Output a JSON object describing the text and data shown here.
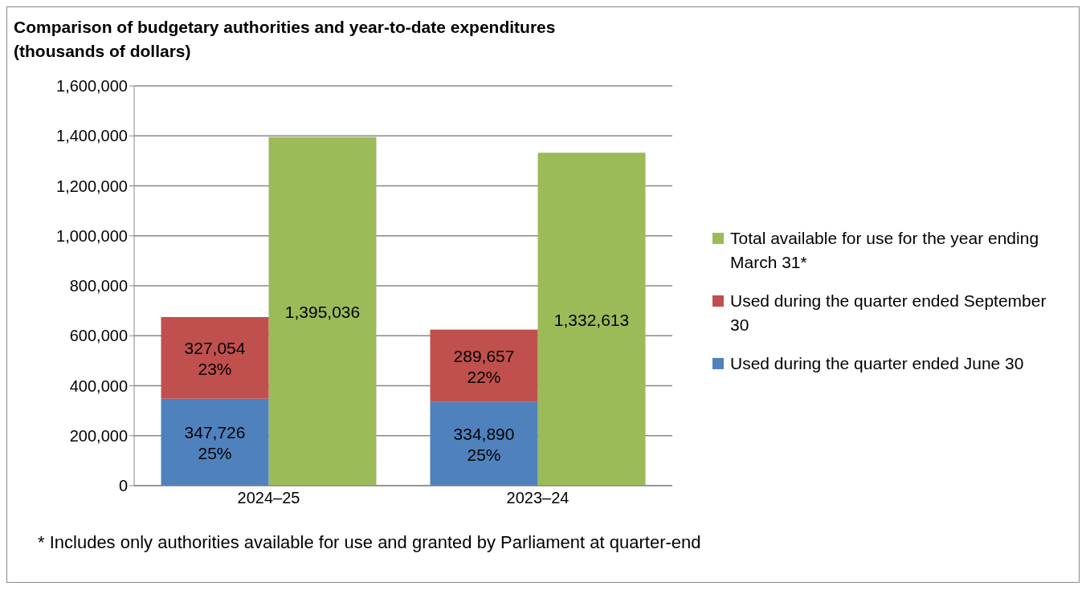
{
  "chart_data": {
    "type": "bar",
    "title": "Comparison of budgetary authorities and year-to-date expenditures\n(thousands of dollars)",
    "categories": [
      "2024–25",
      "2023–24"
    ],
    "series": [
      {
        "name": "Total available for use for the year ending  March 31*",
        "color": "#9bbb59",
        "values": [
          1395036,
          1332613
        ],
        "value_labels": [
          "1,395,036",
          "1,332,613"
        ]
      },
      {
        "name": "Used during the quarter ended June 30",
        "color": "#4f81bd",
        "base": [
          0,
          0
        ],
        "values": [
          347726,
          334890
        ],
        "value_labels": [
          "347,726\n25%",
          "334,890\n25%"
        ]
      },
      {
        "name": "Used during the quarter ended September 30",
        "color": "#c0504d",
        "base": [
          347726,
          334890
        ],
        "values": [
          327054,
          289657
        ],
        "value_labels": [
          "327,054\n23%",
          "289,657\n22%"
        ]
      }
    ],
    "ylim": [
      0,
      1600000
    ],
    "yticks": [
      {
        "value": 0,
        "label": "0"
      },
      {
        "value": 200000,
        "label": "200,000"
      },
      {
        "value": 400000,
        "label": "400,000"
      },
      {
        "value": 600000,
        "label": "600,000"
      },
      {
        "value": 800000,
        "label": "800,000"
      },
      {
        "value": 1000000,
        "label": "1,000,000"
      },
      {
        "value": 1200000,
        "label": "1,200,000"
      },
      {
        "value": 1400000,
        "label": "1,400,000"
      },
      {
        "value": 1600000,
        "label": "1,600,000"
      }
    ],
    "grid": "y",
    "legend": "right",
    "annotations": [
      "* Includes only authorities available for use and granted by Parliament at quarter-end"
    ]
  }
}
